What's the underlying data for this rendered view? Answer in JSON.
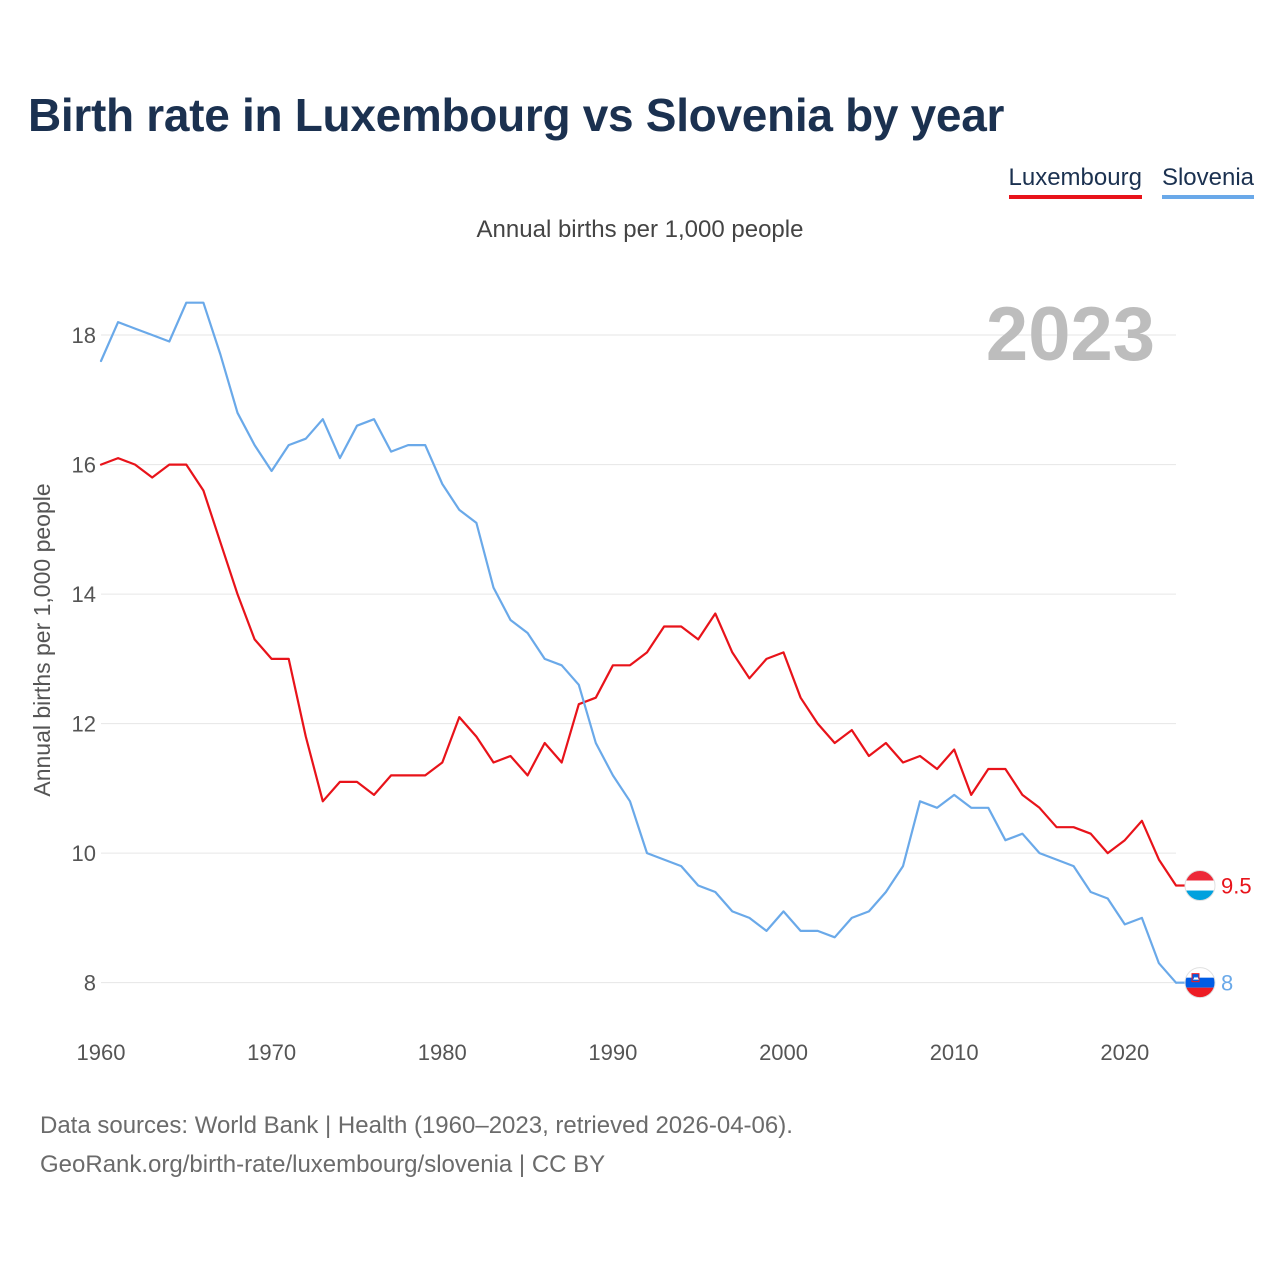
{
  "title": "Birth rate in Luxembourg vs Slovenia by year",
  "legend": {
    "luxembourg": "Luxembourg",
    "slovenia": "Slovenia"
  },
  "subtitle": "Annual births per 1,000 people",
  "footer": {
    "line1": "Data sources: World Bank | Health (1960–2023, retrieved 2026-04-06).",
    "line2": "GeoRank.org/birth-rate/luxembourg/slovenia | CC BY"
  },
  "colors": {
    "luxembourg": "#e8131a",
    "slovenia": "#6aa9e9",
    "title": "#1b3150",
    "grid": "#e6e6e6"
  },
  "chart_data": {
    "type": "line",
    "title": "Birth rate in Luxembourg vs Slovenia by year",
    "subtitle": "Annual births per 1,000 people",
    "ylabel": "Annual births per 1,000 people",
    "xlabel": "",
    "year_label": "2023",
    "xlim": [
      1960,
      2023
    ],
    "ylim": [
      7.3,
      18.85
    ],
    "x_ticks": [
      1960,
      1970,
      1980,
      1990,
      2000,
      2010,
      2020
    ],
    "y_ticks": [
      8,
      10,
      12,
      14,
      16,
      18
    ],
    "grid": true,
    "legend_position": "top-right",
    "x": [
      1960,
      1961,
      1962,
      1963,
      1964,
      1965,
      1966,
      1967,
      1968,
      1969,
      1970,
      1971,
      1972,
      1973,
      1974,
      1975,
      1976,
      1977,
      1978,
      1979,
      1980,
      1981,
      1982,
      1983,
      1984,
      1985,
      1986,
      1987,
      1988,
      1989,
      1990,
      1991,
      1992,
      1993,
      1994,
      1995,
      1996,
      1997,
      1998,
      1999,
      2000,
      2001,
      2002,
      2003,
      2004,
      2005,
      2006,
      2007,
      2008,
      2009,
      2010,
      2011,
      2012,
      2013,
      2014,
      2015,
      2016,
      2017,
      2018,
      2019,
      2020,
      2021,
      2022,
      2023
    ],
    "series": [
      {
        "name": "Luxembourg",
        "color": "#e8131a",
        "end_label": "9.5",
        "values": [
          16.0,
          16.1,
          16.0,
          15.8,
          16.0,
          16.0,
          15.6,
          14.8,
          14.0,
          13.3,
          13.0,
          13.0,
          11.8,
          10.8,
          11.1,
          11.1,
          10.9,
          11.2,
          11.2,
          11.2,
          11.4,
          12.1,
          11.8,
          11.4,
          11.5,
          11.2,
          11.7,
          11.4,
          12.3,
          12.4,
          12.9,
          12.9,
          13.1,
          13.5,
          13.5,
          13.3,
          13.7,
          13.1,
          12.7,
          13.0,
          13.1,
          12.4,
          12.0,
          11.7,
          11.9,
          11.5,
          11.7,
          11.4,
          11.5,
          11.3,
          11.6,
          10.9,
          11.3,
          11.3,
          10.9,
          10.7,
          10.4,
          10.4,
          10.3,
          10.0,
          10.2,
          10.5,
          9.9,
          9.5
        ]
      },
      {
        "name": "Slovenia",
        "color": "#6aa9e9",
        "end_label": "8",
        "values": [
          17.6,
          18.2,
          18.1,
          18.0,
          17.9,
          18.5,
          18.5,
          17.7,
          16.8,
          16.3,
          15.9,
          16.3,
          16.4,
          16.7,
          16.1,
          16.6,
          16.7,
          16.2,
          16.3,
          16.3,
          15.7,
          15.3,
          15.1,
          14.1,
          13.6,
          13.4,
          13.0,
          12.9,
          12.6,
          11.7,
          11.2,
          10.8,
          10.0,
          9.9,
          9.8,
          9.5,
          9.4,
          9.1,
          9.0,
          8.8,
          9.1,
          8.8,
          8.8,
          8.7,
          9.0,
          9.1,
          9.4,
          9.8,
          10.8,
          10.7,
          10.9,
          10.7,
          10.7,
          10.2,
          10.3,
          10.0,
          9.9,
          9.8,
          9.4,
          9.3,
          8.9,
          9.0,
          8.3,
          8.0
        ]
      }
    ]
  }
}
